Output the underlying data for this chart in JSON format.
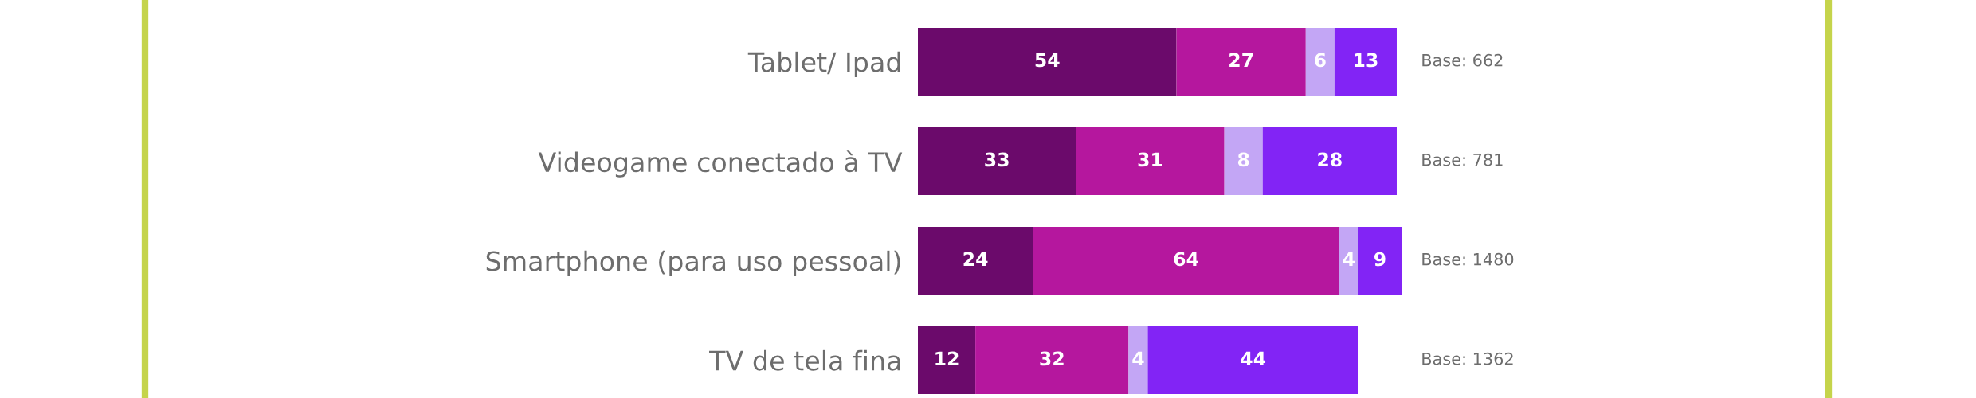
{
  "chart_data": {
    "type": "bar",
    "orientation": "horizontal",
    "stacked": true,
    "data_labels": true,
    "grid": false,
    "legend": false,
    "tick_labels": "y",
    "xlim": [
      0,
      101
    ],
    "categories": [
      "Tablet/ Ipad",
      "Videogame conectado à TV",
      "Smartphone (para uso pessoal)",
      "TV de tela fina"
    ],
    "series": [
      {
        "color": "#6b0a6b",
        "values": [
          54,
          33,
          24,
          12
        ]
      },
      {
        "color": "#b5179e",
        "values": [
          27,
          31,
          64,
          32
        ]
      },
      {
        "color": "#c3a6f5",
        "values": [
          6,
          8,
          4,
          4
        ]
      },
      {
        "color": "#8224f5",
        "values": [
          13,
          28,
          9,
          44
        ]
      }
    ],
    "annotations": [
      "Base: 662",
      "Base: 781",
      "Base: 1480",
      "Base: 1362"
    ]
  }
}
